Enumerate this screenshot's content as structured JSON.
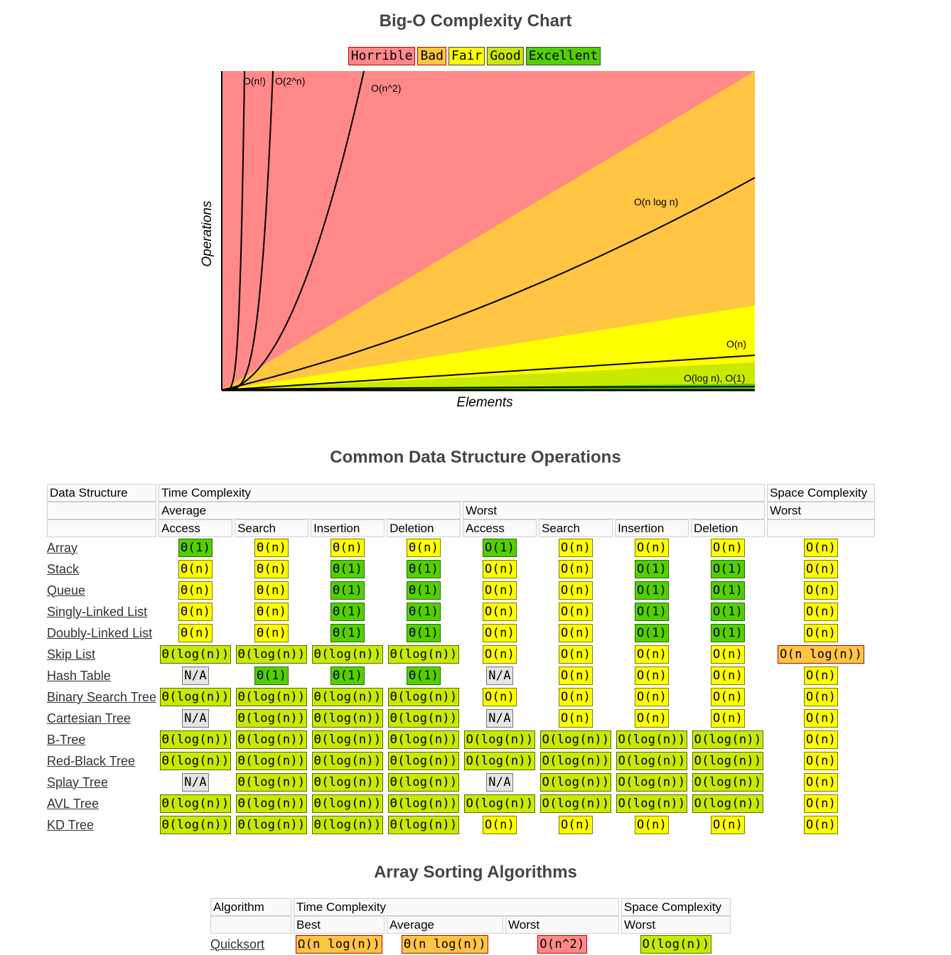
{
  "chart_title": "Big-O Complexity Chart",
  "legend": [
    {
      "label": "Horrible",
      "color": "#ff8989"
    },
    {
      "label": "Bad",
      "color": "#ffc543"
    },
    {
      "label": "Fair",
      "color": "#ffff00"
    },
    {
      "label": "Good",
      "color": "#c8ea00"
    },
    {
      "label": "Excellent",
      "color": "#53d000"
    }
  ],
  "chart_data": {
    "type": "line",
    "title": "Big-O Complexity Chart",
    "xlabel": "Elements",
    "ylabel": "Operations",
    "xlim": [
      0,
      100
    ],
    "ylim": [
      0,
      100
    ],
    "regions": [
      {
        "name": "Horrible",
        "color": "#ff8989"
      },
      {
        "name": "Bad",
        "color": "#ffc543"
      },
      {
        "name": "Fair",
        "color": "#ffff00"
      },
      {
        "name": "Good",
        "color": "#c8ea00"
      },
      {
        "name": "Excellent",
        "color": "#53d000"
      }
    ],
    "series": [
      {
        "name": "O(n!)",
        "function": "factorial"
      },
      {
        "name": "O(2^n)",
        "function": "exponential"
      },
      {
        "name": "O(n^2)",
        "function": "quadratic"
      },
      {
        "name": "O(n log n)",
        "function": "nlogn"
      },
      {
        "name": "O(n)",
        "function": "linear"
      },
      {
        "name": "O(log n), O(1)",
        "function": "logarithmic"
      }
    ]
  },
  "ds_section": {
    "title": "Common Data Structure Operations",
    "h_data_structure": "Data Structure",
    "h_time": "Time Complexity",
    "h_space": "Space Complexity",
    "h_average": "Average",
    "h_worst": "Worst",
    "h_worst2": "Worst",
    "ops": [
      "Access",
      "Search",
      "Insertion",
      "Deletion",
      "Access",
      "Search",
      "Insertion",
      "Deletion"
    ],
    "rows": [
      {
        "name": "Array",
        "cells": [
          [
            "Θ(1)",
            "excellent"
          ],
          [
            "Θ(n)",
            "fair"
          ],
          [
            "Θ(n)",
            "fair"
          ],
          [
            "Θ(n)",
            "fair"
          ],
          [
            "O(1)",
            "excellent"
          ],
          [
            "O(n)",
            "fair"
          ],
          [
            "O(n)",
            "fair"
          ],
          [
            "O(n)",
            "fair"
          ],
          [
            "O(n)",
            "fair"
          ]
        ]
      },
      {
        "name": "Stack",
        "cells": [
          [
            "Θ(n)",
            "fair"
          ],
          [
            "Θ(n)",
            "fair"
          ],
          [
            "Θ(1)",
            "excellent"
          ],
          [
            "Θ(1)",
            "excellent"
          ],
          [
            "O(n)",
            "fair"
          ],
          [
            "O(n)",
            "fair"
          ],
          [
            "O(1)",
            "excellent"
          ],
          [
            "O(1)",
            "excellent"
          ],
          [
            "O(n)",
            "fair"
          ]
        ]
      },
      {
        "name": "Queue",
        "cells": [
          [
            "Θ(n)",
            "fair"
          ],
          [
            "Θ(n)",
            "fair"
          ],
          [
            "Θ(1)",
            "excellent"
          ],
          [
            "Θ(1)",
            "excellent"
          ],
          [
            "O(n)",
            "fair"
          ],
          [
            "O(n)",
            "fair"
          ],
          [
            "O(1)",
            "excellent"
          ],
          [
            "O(1)",
            "excellent"
          ],
          [
            "O(n)",
            "fair"
          ]
        ]
      },
      {
        "name": "Singly-Linked List",
        "cells": [
          [
            "Θ(n)",
            "fair"
          ],
          [
            "Θ(n)",
            "fair"
          ],
          [
            "Θ(1)",
            "excellent"
          ],
          [
            "Θ(1)",
            "excellent"
          ],
          [
            "O(n)",
            "fair"
          ],
          [
            "O(n)",
            "fair"
          ],
          [
            "O(1)",
            "excellent"
          ],
          [
            "O(1)",
            "excellent"
          ],
          [
            "O(n)",
            "fair"
          ]
        ]
      },
      {
        "name": "Doubly-Linked List",
        "cells": [
          [
            "Θ(n)",
            "fair"
          ],
          [
            "Θ(n)",
            "fair"
          ],
          [
            "Θ(1)",
            "excellent"
          ],
          [
            "Θ(1)",
            "excellent"
          ],
          [
            "O(n)",
            "fair"
          ],
          [
            "O(n)",
            "fair"
          ],
          [
            "O(1)",
            "excellent"
          ],
          [
            "O(1)",
            "excellent"
          ],
          [
            "O(n)",
            "fair"
          ]
        ]
      },
      {
        "name": "Skip List",
        "cells": [
          [
            "Θ(log(n))",
            "good"
          ],
          [
            "Θ(log(n))",
            "good"
          ],
          [
            "Θ(log(n))",
            "good"
          ],
          [
            "Θ(log(n))",
            "good"
          ],
          [
            "O(n)",
            "fair"
          ],
          [
            "O(n)",
            "fair"
          ],
          [
            "O(n)",
            "fair"
          ],
          [
            "O(n)",
            "fair"
          ],
          [
            "O(n log(n))",
            "bad"
          ]
        ]
      },
      {
        "name": "Hash Table",
        "cells": [
          [
            "N/A",
            "na"
          ],
          [
            "Θ(1)",
            "excellent"
          ],
          [
            "Θ(1)",
            "excellent"
          ],
          [
            "Θ(1)",
            "excellent"
          ],
          [
            "N/A",
            "na"
          ],
          [
            "O(n)",
            "fair"
          ],
          [
            "O(n)",
            "fair"
          ],
          [
            "O(n)",
            "fair"
          ],
          [
            "O(n)",
            "fair"
          ]
        ]
      },
      {
        "name": "Binary Search Tree",
        "cells": [
          [
            "Θ(log(n))",
            "good"
          ],
          [
            "Θ(log(n))",
            "good"
          ],
          [
            "Θ(log(n))",
            "good"
          ],
          [
            "Θ(log(n))",
            "good"
          ],
          [
            "O(n)",
            "fair"
          ],
          [
            "O(n)",
            "fair"
          ],
          [
            "O(n)",
            "fair"
          ],
          [
            "O(n)",
            "fair"
          ],
          [
            "O(n)",
            "fair"
          ]
        ]
      },
      {
        "name": "Cartesian Tree",
        "cells": [
          [
            "N/A",
            "na"
          ],
          [
            "Θ(log(n))",
            "good"
          ],
          [
            "Θ(log(n))",
            "good"
          ],
          [
            "Θ(log(n))",
            "good"
          ],
          [
            "N/A",
            "na"
          ],
          [
            "O(n)",
            "fair"
          ],
          [
            "O(n)",
            "fair"
          ],
          [
            "O(n)",
            "fair"
          ],
          [
            "O(n)",
            "fair"
          ]
        ]
      },
      {
        "name": "B-Tree",
        "cells": [
          [
            "Θ(log(n))",
            "good"
          ],
          [
            "Θ(log(n))",
            "good"
          ],
          [
            "Θ(log(n))",
            "good"
          ],
          [
            "Θ(log(n))",
            "good"
          ],
          [
            "O(log(n))",
            "good"
          ],
          [
            "O(log(n))",
            "good"
          ],
          [
            "O(log(n))",
            "good"
          ],
          [
            "O(log(n))",
            "good"
          ],
          [
            "O(n)",
            "fair"
          ]
        ]
      },
      {
        "name": "Red-Black Tree",
        "cells": [
          [
            "Θ(log(n))",
            "good"
          ],
          [
            "Θ(log(n))",
            "good"
          ],
          [
            "Θ(log(n))",
            "good"
          ],
          [
            "Θ(log(n))",
            "good"
          ],
          [
            "O(log(n))",
            "good"
          ],
          [
            "O(log(n))",
            "good"
          ],
          [
            "O(log(n))",
            "good"
          ],
          [
            "O(log(n))",
            "good"
          ],
          [
            "O(n)",
            "fair"
          ]
        ]
      },
      {
        "name": "Splay Tree",
        "cells": [
          [
            "N/A",
            "na"
          ],
          [
            "Θ(log(n))",
            "good"
          ],
          [
            "Θ(log(n))",
            "good"
          ],
          [
            "Θ(log(n))",
            "good"
          ],
          [
            "N/A",
            "na"
          ],
          [
            "O(log(n))",
            "good"
          ],
          [
            "O(log(n))",
            "good"
          ],
          [
            "O(log(n))",
            "good"
          ],
          [
            "O(n)",
            "fair"
          ]
        ]
      },
      {
        "name": "AVL Tree",
        "cells": [
          [
            "Θ(log(n))",
            "good"
          ],
          [
            "Θ(log(n))",
            "good"
          ],
          [
            "Θ(log(n))",
            "good"
          ],
          [
            "Θ(log(n))",
            "good"
          ],
          [
            "O(log(n))",
            "good"
          ],
          [
            "O(log(n))",
            "good"
          ],
          [
            "O(log(n))",
            "good"
          ],
          [
            "O(log(n))",
            "good"
          ],
          [
            "O(n)",
            "fair"
          ]
        ]
      },
      {
        "name": "KD Tree",
        "cells": [
          [
            "Θ(log(n))",
            "good"
          ],
          [
            "Θ(log(n))",
            "good"
          ],
          [
            "Θ(log(n))",
            "good"
          ],
          [
            "Θ(log(n))",
            "good"
          ],
          [
            "O(n)",
            "fair"
          ],
          [
            "O(n)",
            "fair"
          ],
          [
            "O(n)",
            "fair"
          ],
          [
            "O(n)",
            "fair"
          ],
          [
            "O(n)",
            "fair"
          ]
        ]
      }
    ]
  },
  "sort_section": {
    "title": "Array Sorting Algorithms",
    "h_algorithm": "Algorithm",
    "h_time": "Time Complexity",
    "h_space": "Space Complexity",
    "h_best": "Best",
    "h_average": "Average",
    "h_worst": "Worst",
    "h_worst2": "Worst",
    "rows": [
      {
        "name": "Quicksort",
        "cells": [
          [
            "Ω(n log(n))",
            "bad"
          ],
          [
            "Θ(n log(n))",
            "bad"
          ],
          [
            "O(n^2)",
            "horrible"
          ],
          [
            "O(log(n))",
            "good"
          ]
        ]
      }
    ]
  }
}
